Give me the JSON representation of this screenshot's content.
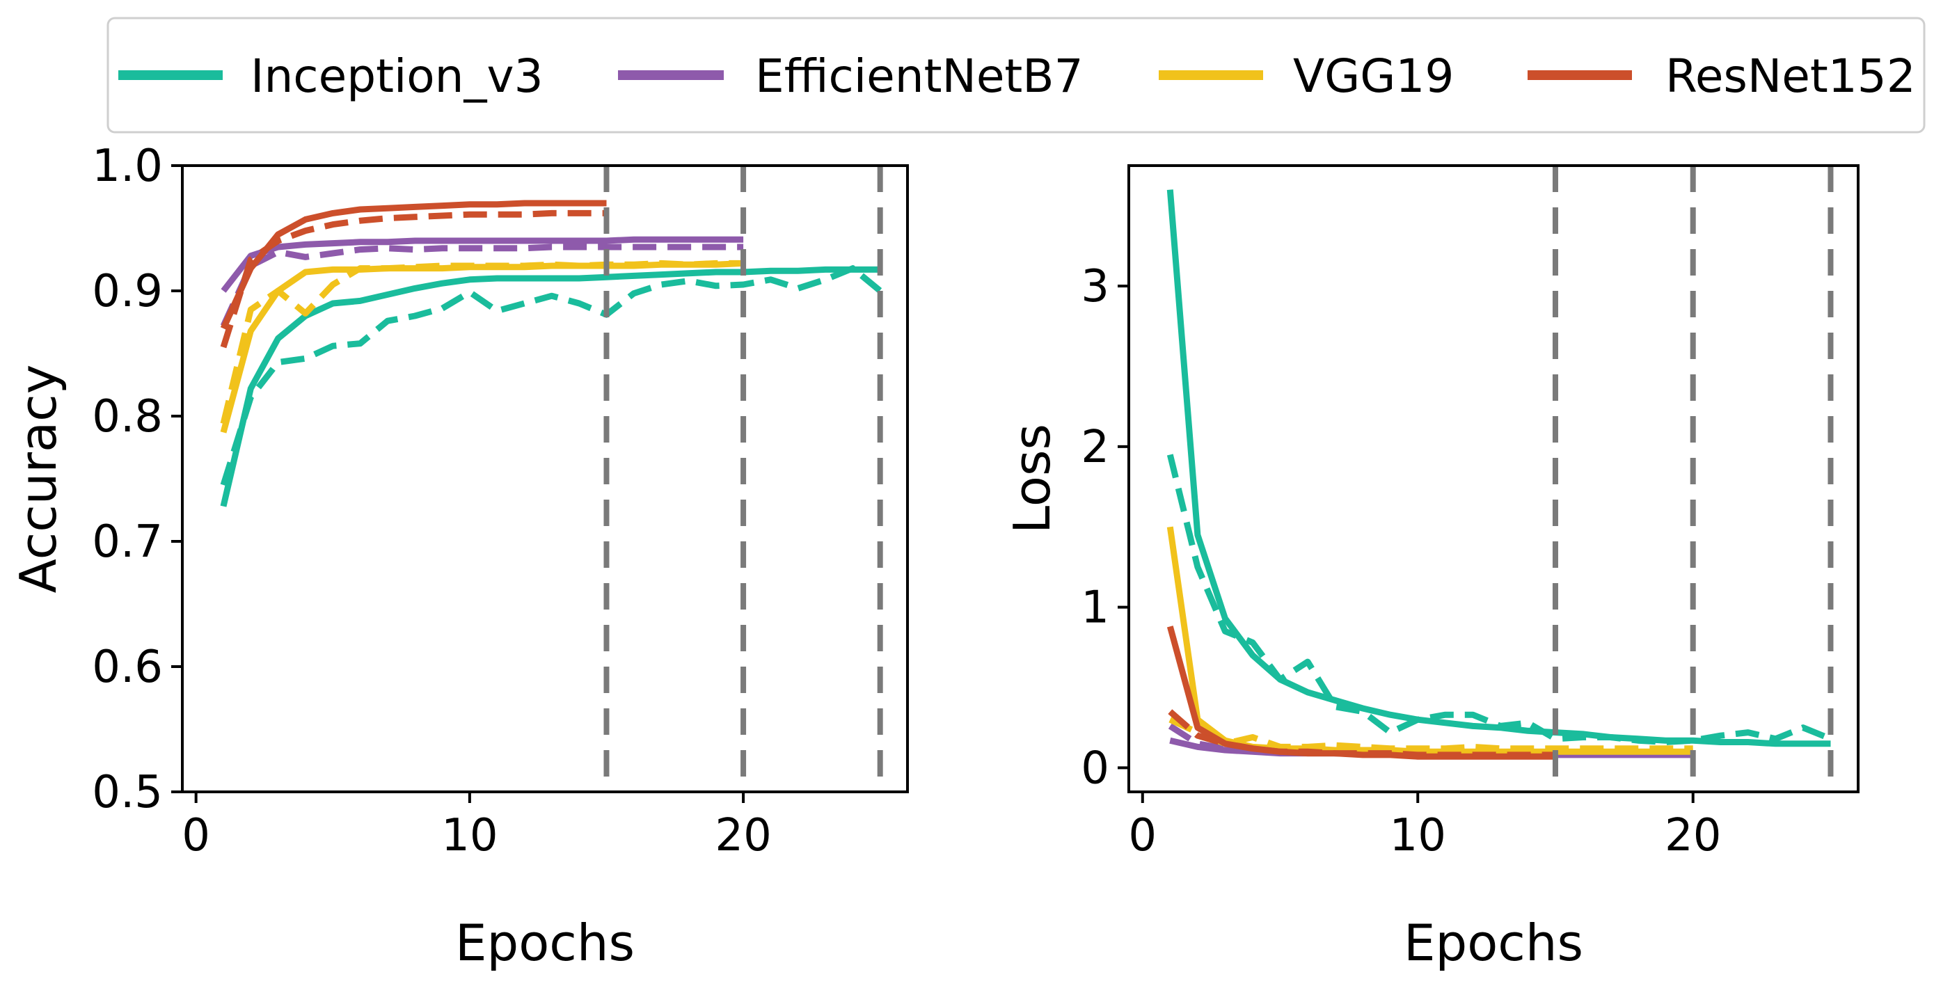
{
  "chart_data": [
    {
      "type": "line",
      "title": "",
      "xlabel": "Epochs",
      "ylabel": "Accuracy",
      "xlim": [
        -0.5,
        26
      ],
      "ylim": [
        0.5,
        1.0
      ],
      "xticks": [
        "0",
        "10",
        "20"
      ],
      "yticks": [
        "0.5",
        "0.6",
        "0.7",
        "0.8",
        "0.9",
        "1.0"
      ],
      "xtick_values": [
        0,
        10,
        20
      ],
      "ytick_values": [
        0.5,
        0.6,
        0.7,
        0.8,
        0.9,
        1.0
      ],
      "grid": false,
      "vlines": [
        15,
        20,
        25
      ],
      "series": [
        {
          "name": "Inception_v3",
          "color": "#1abc9c",
          "dash": false,
          "x": [
            1,
            2,
            3,
            4,
            5,
            6,
            7,
            8,
            9,
            10,
            11,
            12,
            13,
            14,
            15,
            16,
            17,
            18,
            19,
            20,
            21,
            22,
            23,
            24,
            25
          ],
          "y": [
            0.728,
            0.822,
            0.862,
            0.88,
            0.89,
            0.892,
            0.897,
            0.902,
            0.906,
            0.909,
            0.91,
            0.91,
            0.91,
            0.91,
            0.911,
            0.912,
            0.913,
            0.914,
            0.915,
            0.915,
            0.916,
            0.916,
            0.917,
            0.917,
            0.917
          ]
        },
        {
          "name": "Inception_v3 (val)",
          "color": "#1abc9c",
          "dash": true,
          "x": [
            1,
            2,
            3,
            4,
            5,
            6,
            7,
            8,
            9,
            10,
            11,
            12,
            13,
            14,
            15,
            16,
            17,
            18,
            19,
            20,
            21,
            22,
            23,
            24,
            25
          ],
          "y": [
            0.745,
            0.815,
            0.843,
            0.846,
            0.856,
            0.858,
            0.876,
            0.88,
            0.886,
            0.899,
            0.884,
            0.89,
            0.896,
            0.89,
            0.881,
            0.898,
            0.905,
            0.908,
            0.904,
            0.905,
            0.909,
            0.902,
            0.909,
            0.918,
            0.9
          ]
        },
        {
          "name": "EfficientNetB7",
          "color": "#8e5aab",
          "dash": false,
          "x": [
            1,
            2,
            3,
            4,
            5,
            6,
            7,
            8,
            9,
            10,
            11,
            12,
            13,
            14,
            15,
            16,
            17,
            18,
            19,
            20
          ],
          "y": [
            0.9,
            0.928,
            0.935,
            0.937,
            0.938,
            0.939,
            0.939,
            0.94,
            0.94,
            0.94,
            0.94,
            0.94,
            0.94,
            0.94,
            0.94,
            0.941,
            0.941,
            0.941,
            0.941,
            0.941
          ]
        },
        {
          "name": "EfficientNetB7 (val)",
          "color": "#8e5aab",
          "dash": true,
          "x": [
            1,
            2,
            3,
            4,
            5,
            6,
            7,
            8,
            9,
            10,
            11,
            12,
            13,
            14,
            15,
            16,
            17,
            18,
            19,
            20
          ],
          "y": [
            0.872,
            0.92,
            0.931,
            0.927,
            0.93,
            0.933,
            0.934,
            0.933,
            0.934,
            0.934,
            0.934,
            0.934,
            0.935,
            0.935,
            0.935,
            0.935,
            0.935,
            0.935,
            0.935,
            0.935
          ]
        },
        {
          "name": "VGG19",
          "color": "#f1c21b",
          "dash": false,
          "x": [
            1,
            2,
            3,
            4,
            5,
            6,
            7,
            8,
            9,
            10,
            11,
            12,
            13,
            14,
            15,
            16,
            17,
            18,
            19,
            20
          ],
          "y": [
            0.787,
            0.868,
            0.9,
            0.915,
            0.917,
            0.917,
            0.918,
            0.918,
            0.918,
            0.919,
            0.919,
            0.919,
            0.92,
            0.92,
            0.92,
            0.92,
            0.921,
            0.921,
            0.921,
            0.922
          ]
        },
        {
          "name": "VGG19 (val)",
          "color": "#f1c21b",
          "dash": true,
          "x": [
            1,
            2,
            3,
            4,
            5,
            6,
            7,
            8,
            9,
            10,
            11,
            12,
            13,
            14,
            15,
            16,
            17,
            18,
            19,
            20
          ],
          "y": [
            0.794,
            0.885,
            0.9,
            0.882,
            0.905,
            0.918,
            0.918,
            0.919,
            0.92,
            0.92,
            0.92,
            0.92,
            0.921,
            0.92,
            0.921,
            0.921,
            0.922,
            0.921,
            0.922,
            0.922
          ]
        },
        {
          "name": "ResNet152",
          "color": "#cc4f2b",
          "dash": false,
          "x": [
            1,
            2,
            3,
            4,
            5,
            6,
            7,
            8,
            9,
            10,
            11,
            12,
            13,
            14,
            15
          ],
          "y": [
            0.87,
            0.918,
            0.945,
            0.957,
            0.962,
            0.965,
            0.966,
            0.967,
            0.968,
            0.969,
            0.969,
            0.97,
            0.97,
            0.97,
            0.97
          ]
        },
        {
          "name": "ResNet152 (val)",
          "color": "#cc4f2b",
          "dash": true,
          "x": [
            1,
            2,
            3,
            4,
            5,
            6,
            7,
            8,
            9,
            10,
            11,
            12,
            13,
            14,
            15
          ],
          "y": [
            0.855,
            0.925,
            0.94,
            0.948,
            0.953,
            0.956,
            0.958,
            0.959,
            0.96,
            0.961,
            0.961,
            0.961,
            0.962,
            0.962,
            0.962
          ]
        }
      ]
    },
    {
      "type": "line",
      "title": "",
      "xlabel": "Epochs",
      "ylabel": "Loss",
      "xlim": [
        -0.5,
        26
      ],
      "ylim": [
        -0.15,
        3.75
      ],
      "xticks": [
        "0",
        "10",
        "20"
      ],
      "yticks": [
        "0",
        "1",
        "2",
        "3"
      ],
      "xtick_values": [
        0,
        10,
        20
      ],
      "ytick_values": [
        0,
        1,
        2,
        3
      ],
      "grid": false,
      "vlines": [
        15,
        20,
        25
      ],
      "series": [
        {
          "name": "Inception_v3",
          "color": "#1abc9c",
          "dash": false,
          "x": [
            1,
            2,
            3,
            4,
            5,
            6,
            7,
            8,
            9,
            10,
            11,
            12,
            13,
            14,
            15,
            16,
            17,
            18,
            19,
            20,
            21,
            22,
            23,
            24,
            25
          ],
          "y": [
            3.6,
            1.45,
            0.93,
            0.7,
            0.55,
            0.47,
            0.42,
            0.37,
            0.33,
            0.3,
            0.28,
            0.26,
            0.25,
            0.23,
            0.22,
            0.21,
            0.19,
            0.18,
            0.17,
            0.17,
            0.16,
            0.16,
            0.15,
            0.15,
            0.15
          ]
        },
        {
          "name": "Inception_v3 (val)",
          "color": "#1abc9c",
          "dash": true,
          "x": [
            1,
            2,
            3,
            4,
            5,
            6,
            7,
            8,
            9,
            10,
            11,
            12,
            13,
            14,
            15,
            16,
            17,
            18,
            19,
            20,
            21,
            22,
            23,
            24,
            25
          ],
          "y": [
            1.95,
            1.25,
            0.85,
            0.78,
            0.55,
            0.66,
            0.38,
            0.35,
            0.22,
            0.3,
            0.33,
            0.33,
            0.26,
            0.28,
            0.18,
            0.19,
            0.19,
            0.17,
            0.16,
            0.17,
            0.2,
            0.22,
            0.18,
            0.25,
            0.18
          ]
        },
        {
          "name": "EfficientNetB7",
          "color": "#8e5aab",
          "dash": false,
          "x": [
            1,
            2,
            3,
            4,
            5,
            6,
            7,
            8,
            9,
            10,
            11,
            12,
            13,
            14,
            15,
            16,
            17,
            18,
            19,
            20
          ],
          "y": [
            0.17,
            0.13,
            0.11,
            0.1,
            0.09,
            0.09,
            0.09,
            0.09,
            0.09,
            0.08,
            0.08,
            0.08,
            0.08,
            0.08,
            0.08,
            0.08,
            0.08,
            0.08,
            0.08,
            0.08
          ]
        },
        {
          "name": "EfficientNetB7 (val)",
          "color": "#8e5aab",
          "dash": true,
          "x": [
            1,
            2,
            3,
            4,
            5,
            6,
            7,
            8,
            9,
            10,
            11,
            12,
            13,
            14,
            15,
            16,
            17,
            18,
            19,
            20
          ],
          "y": [
            0.26,
            0.15,
            0.12,
            0.11,
            0.1,
            0.1,
            0.1,
            0.1,
            0.09,
            0.09,
            0.09,
            0.09,
            0.09,
            0.09,
            0.09,
            0.09,
            0.09,
            0.09,
            0.09,
            0.09
          ]
        },
        {
          "name": "VGG19",
          "color": "#f1c21b",
          "dash": false,
          "x": [
            1,
            2,
            3,
            4,
            5,
            6,
            7,
            8,
            9,
            10,
            11,
            12,
            13,
            14,
            15,
            16,
            17,
            18,
            19,
            20
          ],
          "y": [
            1.5,
            0.3,
            0.17,
            0.13,
            0.12,
            0.12,
            0.11,
            0.11,
            0.11,
            0.1,
            0.1,
            0.1,
            0.1,
            0.1,
            0.1,
            0.1,
            0.1,
            0.1,
            0.1,
            0.1
          ]
        },
        {
          "name": "VGG19 (val)",
          "color": "#f1c21b",
          "dash": true,
          "x": [
            1,
            2,
            3,
            4,
            5,
            6,
            7,
            8,
            9,
            10,
            11,
            12,
            13,
            14,
            15,
            16,
            17,
            18,
            19,
            20
          ],
          "y": [
            0.3,
            0.22,
            0.15,
            0.19,
            0.13,
            0.13,
            0.14,
            0.13,
            0.12,
            0.12,
            0.12,
            0.13,
            0.12,
            0.12,
            0.12,
            0.12,
            0.12,
            0.12,
            0.12,
            0.12
          ]
        },
        {
          "name": "ResNet152",
          "color": "#cc4f2b",
          "dash": false,
          "x": [
            1,
            2,
            3,
            4,
            5,
            6,
            7,
            8,
            9,
            10,
            11,
            12,
            13,
            14,
            15
          ],
          "y": [
            0.88,
            0.25,
            0.15,
            0.12,
            0.1,
            0.09,
            0.09,
            0.08,
            0.08,
            0.07,
            0.07,
            0.07,
            0.07,
            0.07,
            0.07
          ]
        },
        {
          "name": "ResNet152 (val)",
          "color": "#cc4f2b",
          "dash": true,
          "x": [
            1,
            2,
            3,
            4,
            5,
            6,
            7,
            8,
            9,
            10,
            11,
            12,
            13,
            14,
            15
          ],
          "y": [
            0.35,
            0.2,
            0.15,
            0.12,
            0.1,
            0.1,
            0.09,
            0.09,
            0.09,
            0.08,
            0.08,
            0.08,
            0.08,
            0.08,
            0.08
          ]
        }
      ]
    }
  ],
  "legend": {
    "placement": "top-center",
    "items": [
      {
        "label": "Inception_v3",
        "color": "#1abc9c"
      },
      {
        "label": "EfficientNetB7",
        "color": "#8e5aab"
      },
      {
        "label": "VGG19",
        "color": "#f1c21b"
      },
      {
        "label": "ResNet152",
        "color": "#cc4f2b"
      }
    ]
  }
}
